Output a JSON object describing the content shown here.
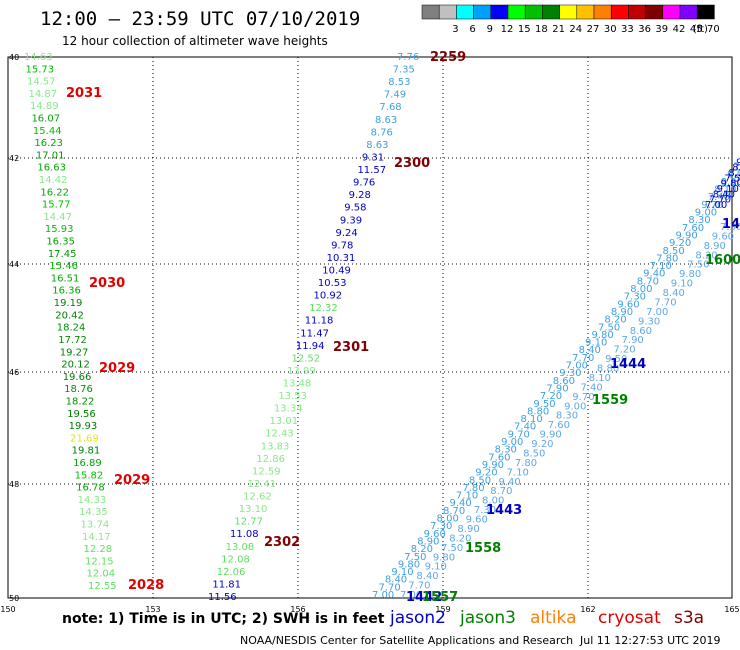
{
  "header": {
    "title": "12:00 — 23:59 UTC 07/10/2019",
    "subtitle": "12 hour collection of altimeter wave heights"
  },
  "legend": {
    "unit": "(ft)",
    "bins": [
      {
        "label": "",
        "color": "#808080"
      },
      {
        "label": "3",
        "color": "#c0c0c0"
      },
      {
        "label": "6",
        "color": "#00ffff"
      },
      {
        "label": "9",
        "color": "#00a0ff"
      },
      {
        "label": "12",
        "color": "#0000ff"
      },
      {
        "label": "15",
        "color": "#00ff00"
      },
      {
        "label": "18",
        "color": "#00c000"
      },
      {
        "label": "21",
        "color": "#008000"
      },
      {
        "label": "24",
        "color": "#ffff00"
      },
      {
        "label": "27",
        "color": "#ffc000"
      },
      {
        "label": "30",
        "color": "#ff8000"
      },
      {
        "label": "33",
        "color": "#ff0000"
      },
      {
        "label": "36",
        "color": "#c00000"
      },
      {
        "label": "39",
        "color": "#800000"
      },
      {
        "label": "42",
        "color": "#ff00ff"
      },
      {
        "label": "45",
        "color": "#8000ff"
      },
      {
        "label": "70",
        "color": "#000000"
      }
    ]
  },
  "axes": {
    "lon_ticks": [
      "150",
      "153",
      "156",
      "159",
      "162",
      "165"
    ],
    "lat_ticks": [
      "40",
      "42",
      "44",
      "46",
      "48",
      "50"
    ]
  },
  "tracks": {
    "track_a": {
      "values": [
        "14.63",
        "15.73",
        "14.57",
        "14.87",
        "14.89",
        "16.07",
        "15.44",
        "16.23",
        "17.01",
        "16.63",
        "14.42",
        "16.22",
        "15.77",
        "14.47",
        "15.93",
        "16.35",
        "17.45",
        "15.46",
        "16.51",
        "16.36",
        "19.19",
        "20.42",
        "18.24",
        "17.72",
        "19.27",
        "20.12",
        "19.66",
        "18.76",
        "18.22",
        "19.56",
        "19.93",
        "21.69",
        "19.81",
        "16.89",
        "15.82",
        "16.78",
        "14.33",
        "14.35",
        "13.74",
        "14.17",
        "12.28",
        "12.15",
        "12.04",
        "12.55"
      ],
      "colors": [
        "#88e888",
        "#00c000",
        "#88e888",
        "#88e888",
        "#88e888",
        "#00a800",
        "#00c000",
        "#00a800",
        "#009800",
        "#00a800",
        "#88e888",
        "#00a800",
        "#00c000",
        "#88e888",
        "#00c000",
        "#00a800",
        "#009800",
        "#00c000",
        "#00a800",
        "#00a800",
        "#008000",
        "#008000",
        "#009000",
        "#009000",
        "#008000",
        "#008000",
        "#008000",
        "#009000",
        "#009000",
        "#008000",
        "#008000",
        "#e8e800",
        "#008000",
        "#00a800",
        "#00c000",
        "#00a800",
        "#88e888",
        "#88e888",
        "#88e888",
        "#88e888",
        "#60e060",
        "#60e060",
        "#60e060",
        "#60e060"
      ]
    },
    "track_b": {
      "values": [
        "7.76",
        "7.35",
        "8.53",
        "7.49",
        "7.68",
        "8.63",
        "8.76",
        "8.63",
        "9.31",
        "11.57",
        "9.76",
        "9.28",
        "9.58",
        "9.39",
        "9.24",
        "9.78",
        "10.31",
        "10.49",
        "10.53",
        "10.92",
        "12.32",
        "11.18",
        "11.47",
        "11.94",
        "12.52",
        "13.99",
        "13.48",
        "13.53",
        "13.34",
        "13.01",
        "12.43",
        "13.83",
        "12.86",
        "12.59",
        "12.41",
        "12.62",
        "13.10",
        "12.77",
        "11.08",
        "13.08",
        "12.08",
        "12.06",
        "11.81",
        "11.56"
      ],
      "colors": [
        "#40a0e0",
        "#40a0e0",
        "#40a0e0",
        "#40a0e0",
        "#40a0e0",
        "#40a0e0",
        "#40a0e0",
        "#40a0e0",
        "#0000c8",
        "#0000c8",
        "#0000c8",
        "#0000c8",
        "#0000c8",
        "#0000c8",
        "#0000c8",
        "#0000c8",
        "#0000c8",
        "#0000c8",
        "#0000c8",
        "#0000c8",
        "#60e060",
        "#0000c8",
        "#0000c8",
        "#0000c8",
        "#60e060",
        "#88e888",
        "#88e888",
        "#88e888",
        "#88e888",
        "#88e888",
        "#88e888",
        "#88e888",
        "#88e888",
        "#88e888",
        "#88e888",
        "#88e888",
        "#88e888",
        "#60e060",
        "#0000c8",
        "#60e060",
        "#60e060",
        "#60e060",
        "#0000c8",
        "#0000c8"
      ]
    }
  },
  "times": [
    {
      "label": "2259",
      "color": "#800000"
    },
    {
      "label": "2031",
      "color": "#e00000"
    },
    {
      "label": "2300",
      "color": "#800000"
    },
    {
      "label": "2030",
      "color": "#e00000"
    },
    {
      "label": "2301",
      "color": "#800000"
    },
    {
      "label": "2029",
      "color": "#e00000"
    },
    {
      "label": "2029",
      "color": "#e00000"
    },
    {
      "label": "2302",
      "color": "#800000"
    },
    {
      "label": "2028",
      "color": "#e00000"
    },
    {
      "label": "1444",
      "color": "#0000c0"
    },
    {
      "label": "1559",
      "color": "#008000"
    },
    {
      "label": "1443",
      "color": "#0000c0"
    },
    {
      "label": "1558",
      "color": "#008000"
    },
    {
      "label": "1600",
      "color": "#008000"
    },
    {
      "label": "14",
      "color": "#0000c0"
    },
    {
      "label": "1442",
      "color": "#0000c0"
    },
    {
      "label": "1557",
      "color": "#008000"
    }
  ],
  "satellites": [
    {
      "label": "jason2",
      "color": "#0000c0"
    },
    {
      "label": "jason3",
      "color": "#008000"
    },
    {
      "label": "altika",
      "color": "#ff8000"
    },
    {
      "label": "cryosat",
      "color": "#e00000"
    },
    {
      "label": "s3a",
      "color": "#800000"
    }
  ],
  "footer": {
    "note": "note:  1) Time is in UTC;  2) SWH is in feet",
    "credit": "NOAA/NESDIS Center for Satellite Applications and Research",
    "timestamp": "Jul 11 12:27:53 UTC 2019"
  }
}
